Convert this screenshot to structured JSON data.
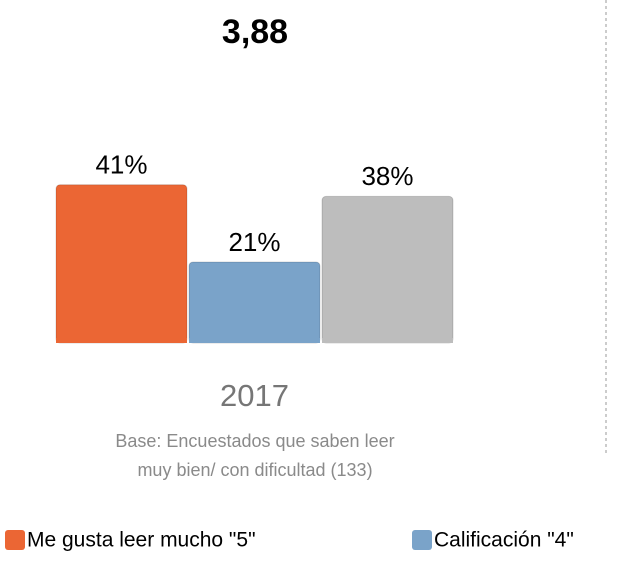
{
  "chart_data": {
    "type": "bar",
    "title": "3,88",
    "categories": [
      "2017"
    ],
    "series": [
      {
        "name": "Me gusta leer mucho \"5\"",
        "color": "#eb6634",
        "values": [
          41
        ],
        "value_labels": [
          "41%"
        ]
      },
      {
        "name": "Calificación \"4\"",
        "color": "#7aa3c9",
        "values": [
          21
        ],
        "value_labels": [
          "21%"
        ]
      },
      {
        "color": "#bdbdbd",
        "values": [
          38
        ],
        "value_labels": [
          "38%"
        ]
      }
    ],
    "annotations": [
      "Base: Encuestados que saben leer",
      "muy bien/ con dificultad (133)"
    ]
  }
}
